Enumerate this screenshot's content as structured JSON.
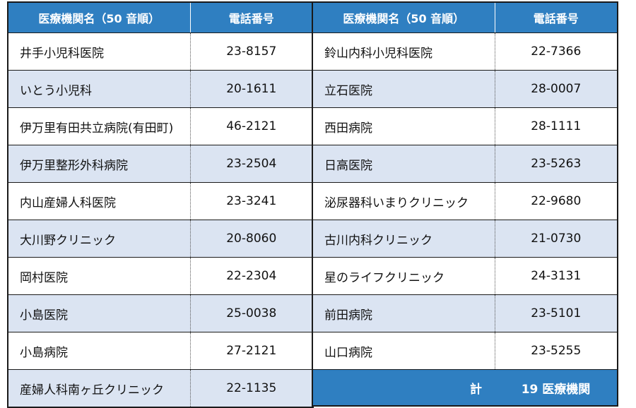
{
  "header": {
    "name_col": "医療機関名（50 音順）",
    "phone_col": "電話番号"
  },
  "left_rows": [
    {
      "name": "井手小児科医院",
      "phone": "23-8157"
    },
    {
      "name": "いとう小児科",
      "phone": "20-1611"
    },
    {
      "name": "伊万里有田共立病院(有田町)",
      "phone": "46-2121"
    },
    {
      "name": "伊万里整形外科病院",
      "phone": "23-2504"
    },
    {
      "name": "内山産婦人科医院",
      "phone": "23-3241"
    },
    {
      "name": "大川野クリニック",
      "phone": "20-8060"
    },
    {
      "name": "岡村医院",
      "phone": "22-2304"
    },
    {
      "name": "小島医院",
      "phone": "25-0038"
    },
    {
      "name": "小島病院",
      "phone": "27-2121"
    },
    {
      "name": "産婦人科南ヶ丘クリニック",
      "phone": "22-1135"
    }
  ],
  "right_rows": [
    {
      "name": "鈴山内科小児科医院",
      "phone": "22-7366"
    },
    {
      "name": "立石医院",
      "phone": "28-0007"
    },
    {
      "name": "西田病院",
      "phone": "28-1111"
    },
    {
      "name": "日高医院",
      "phone": "23-5263"
    },
    {
      "name": "泌尿器科いまりクリニック",
      "phone": "22-9680"
    },
    {
      "name": "古川内科クリニック",
      "phone": "21-0730"
    },
    {
      "name": "星のライフクリニック",
      "phone": "24-3131"
    },
    {
      "name": "前田病院",
      "phone": "23-5101"
    },
    {
      "name": "山口病院",
      "phone": "23-5255"
    }
  ],
  "total": {
    "label": "計",
    "value": "19 医療機関"
  }
}
